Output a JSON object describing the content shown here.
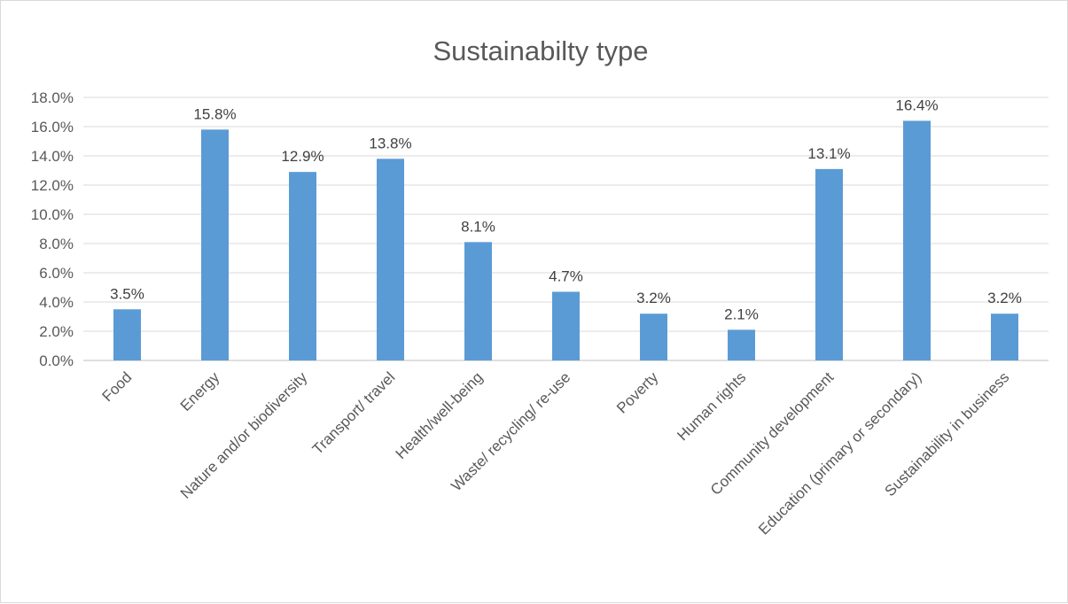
{
  "chart_data": {
    "type": "bar",
    "title": "Sustainabilty type",
    "categories": [
      "Food",
      "Energy",
      "Nature and/or biodiversity",
      "Transport/ travel",
      "Health/well-being",
      "Waste/ recycling/ re-use",
      "Poverty",
      "Human rights",
      "Community development",
      "Education (primary or secondary)",
      "Sustainability in business"
    ],
    "values": [
      3.5,
      15.8,
      12.9,
      13.8,
      8.1,
      4.7,
      3.2,
      2.1,
      13.1,
      16.4,
      3.2
    ],
    "data_labels": [
      "3.5%",
      "15.8%",
      "12.9%",
      "13.8%",
      "8.1%",
      "4.7%",
      "3.2%",
      "2.1%",
      "13.1%",
      "16.4%",
      "3.2%"
    ],
    "yticks": [
      "0.0%",
      "2.0%",
      "4.0%",
      "6.0%",
      "8.0%",
      "10.0%",
      "12.0%",
      "14.0%",
      "16.0%",
      "18.0%"
    ],
    "ylim": [
      0,
      18
    ],
    "grid": true,
    "legend": "none",
    "bar_color": "#5b9bd5"
  }
}
